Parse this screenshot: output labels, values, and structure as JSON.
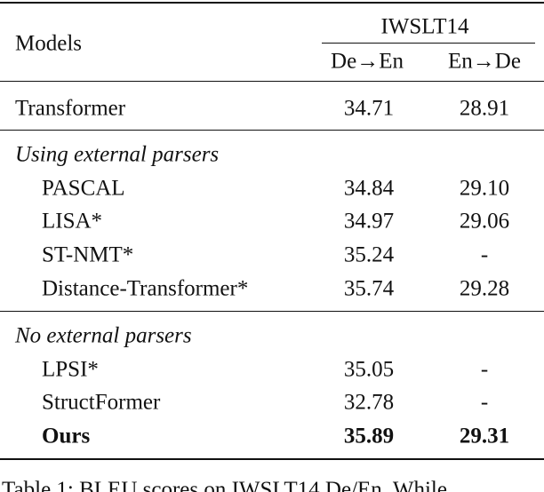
{
  "table": {
    "header": {
      "models": "Models",
      "dataset": "IWSLT14",
      "col1": "De→En",
      "col2": "En→De"
    },
    "baseline": {
      "name": "Transformer",
      "de_en": "34.71",
      "en_de": "28.91"
    },
    "groups": [
      {
        "title": "Using external parsers",
        "rows": [
          {
            "name": "PASCAL",
            "de_en": "34.84",
            "en_de": "29.10"
          },
          {
            "name": "LISA*",
            "de_en": "34.97",
            "en_de": "29.06"
          },
          {
            "name": "ST-NMT*",
            "de_en": "35.24",
            "en_de": "-"
          },
          {
            "name": "Distance-Transformer*",
            "de_en": "35.74",
            "en_de": "29.28"
          }
        ]
      },
      {
        "title": "No external parsers",
        "rows": [
          {
            "name": "LPSI*",
            "de_en": "35.05",
            "en_de": "-"
          },
          {
            "name": "StructFormer",
            "de_en": "32.78",
            "en_de": "-"
          },
          {
            "name": "Ours",
            "de_en": "35.89",
            "en_de": "29.31",
            "bold": true
          }
        ]
      }
    ]
  },
  "caption": "Table 1: BLEU scores on IWSLT14 De/En. While"
}
